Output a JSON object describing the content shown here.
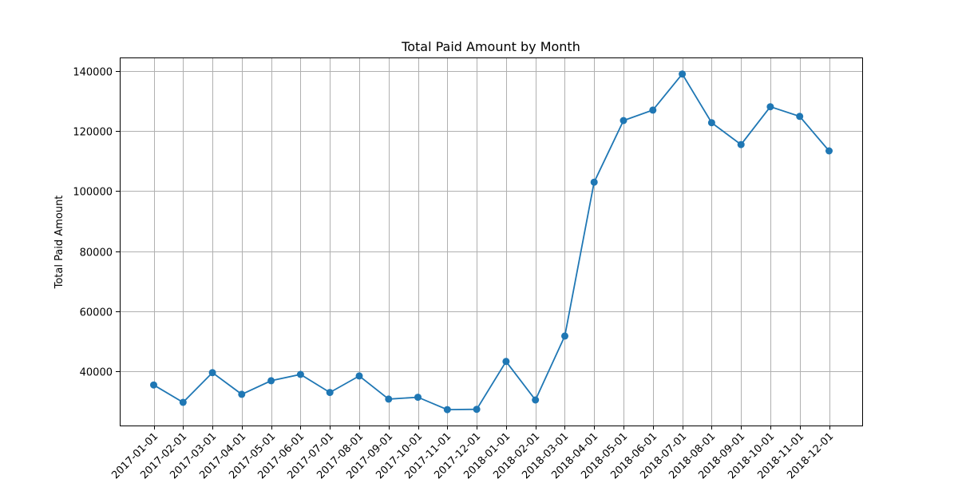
{
  "chart_data": {
    "type": "line",
    "title": "Total Paid Amount by Month",
    "xlabel": "",
    "ylabel": "Total Paid Amount",
    "categories": [
      "2017-01-01",
      "2017-02-01",
      "2017-03-01",
      "2017-04-01",
      "2017-05-01",
      "2017-06-01",
      "2017-07-01",
      "2017-08-01",
      "2017-09-01",
      "2017-10-01",
      "2017-11-01",
      "2017-12-01",
      "2018-01-01",
      "2018-02-01",
      "2018-03-01",
      "2018-04-01",
      "2018-05-01",
      "2018-06-01",
      "2018-07-01",
      "2018-08-01",
      "2018-09-01",
      "2018-10-01",
      "2018-11-01",
      "2018-12-01"
    ],
    "series": [
      {
        "values": [
          35500,
          29700,
          39600,
          32400,
          36900,
          39000,
          33000,
          38500,
          30800,
          31400,
          27300,
          27400,
          43300,
          30500,
          51800,
          103000,
          123500,
          127000,
          139000,
          122800,
          115500,
          128100,
          124900,
          113400
        ],
        "color": "#1f77b4"
      }
    ],
    "ylim": [
      22000,
      144500
    ],
    "yticks": [
      40000,
      60000,
      80000,
      100000,
      120000,
      140000
    ],
    "grid": true,
    "legend": "none"
  }
}
